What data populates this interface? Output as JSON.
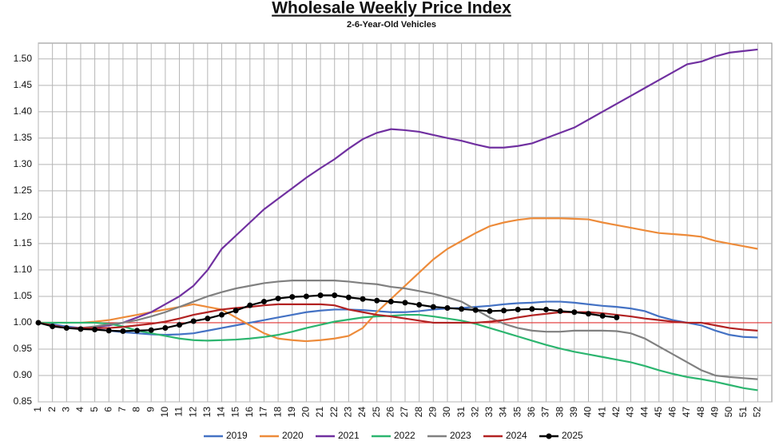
{
  "chart_data": {
    "type": "line",
    "title": "Wholesale Weekly Price Index",
    "subtitle": "2-6-Year-Old Vehicles",
    "x": [
      1,
      2,
      3,
      4,
      5,
      6,
      7,
      8,
      9,
      10,
      11,
      12,
      13,
      14,
      15,
      16,
      17,
      18,
      19,
      20,
      21,
      22,
      23,
      24,
      25,
      26,
      27,
      28,
      29,
      30,
      31,
      32,
      33,
      34,
      35,
      36,
      37,
      38,
      39,
      40,
      41,
      42,
      43,
      44,
      45,
      46,
      47,
      48,
      49,
      50,
      51,
      52
    ],
    "xlim": [
      1,
      53
    ],
    "xticks": [
      1,
      2,
      3,
      4,
      5,
      6,
      7,
      8,
      9,
      10,
      11,
      12,
      13,
      14,
      15,
      16,
      17,
      18,
      19,
      20,
      21,
      22,
      23,
      24,
      25,
      26,
      27,
      28,
      29,
      30,
      31,
      32,
      33,
      34,
      35,
      36,
      37,
      38,
      39,
      40,
      41,
      42,
      43,
      44,
      45,
      46,
      47,
      48,
      49,
      50,
      51,
      52
    ],
    "ylim": [
      0.85,
      1.53
    ],
    "yticks": [
      {
        "value": 0.85,
        "label": "0.85"
      },
      {
        "value": 0.9,
        "label": "0.90"
      },
      {
        "value": 0.95,
        "label": "0.95"
      },
      {
        "value": 1.0,
        "label": "1.00"
      },
      {
        "value": 1.05,
        "label": "1.05"
      },
      {
        "value": 1.1,
        "label": "1.10"
      },
      {
        "value": 1.15,
        "label": "1.15"
      },
      {
        "value": 1.2,
        "label": "1.20"
      },
      {
        "value": 1.25,
        "label": "1.25"
      },
      {
        "value": 1.3,
        "label": "1.30"
      },
      {
        "value": 1.35,
        "label": "1.35"
      },
      {
        "value": 1.4,
        "label": "1.40"
      },
      {
        "value": 1.45,
        "label": "1.45"
      },
      {
        "value": 1.5,
        "label": "1.50"
      }
    ],
    "grid": true,
    "reference_line": {
      "value": 1.0,
      "color": "#e03030"
    },
    "legend": "bottom",
    "series": [
      {
        "name": "2019",
        "color": "#4472c4",
        "values": [
          1.0,
          0.997,
          0.993,
          0.99,
          0.988,
          0.985,
          0.982,
          0.98,
          0.978,
          0.977,
          0.978,
          0.98,
          0.985,
          0.99,
          0.995,
          1.0,
          1.005,
          1.01,
          1.015,
          1.02,
          1.023,
          1.025,
          1.025,
          1.024,
          1.022,
          1.02,
          1.02,
          1.022,
          1.025,
          1.027,
          1.028,
          1.03,
          1.032,
          1.035,
          1.037,
          1.038,
          1.04,
          1.04,
          1.038,
          1.035,
          1.032,
          1.03,
          1.027,
          1.022,
          1.012,
          1.005,
          1.0,
          0.995,
          0.985,
          0.977,
          0.973,
          0.972
        ]
      },
      {
        "name": "2020",
        "color": "#ed8b3a",
        "values": [
          1.0,
          1.0,
          1.0,
          1.0,
          1.002,
          1.005,
          1.01,
          1.015,
          1.02,
          1.025,
          1.03,
          1.035,
          1.03,
          1.025,
          1.01,
          0.995,
          0.98,
          0.97,
          0.967,
          0.965,
          0.967,
          0.97,
          0.975,
          0.99,
          1.02,
          1.045,
          1.07,
          1.095,
          1.12,
          1.14,
          1.155,
          1.17,
          1.183,
          1.19,
          1.195,
          1.198,
          1.198,
          1.198,
          1.197,
          1.196,
          1.19,
          1.185,
          1.18,
          1.175,
          1.17,
          1.168,
          1.166,
          1.163,
          1.155,
          1.15,
          1.145,
          1.14
        ]
      },
      {
        "name": "2021",
        "color": "#7030a0",
        "values": [
          1.0,
          0.995,
          0.99,
          0.99,
          0.992,
          0.995,
          1.0,
          1.01,
          1.02,
          1.035,
          1.05,
          1.07,
          1.1,
          1.14,
          1.165,
          1.19,
          1.215,
          1.235,
          1.255,
          1.275,
          1.293,
          1.31,
          1.33,
          1.348,
          1.36,
          1.367,
          1.365,
          1.362,
          1.356,
          1.35,
          1.345,
          1.338,
          1.332,
          1.332,
          1.335,
          1.34,
          1.35,
          1.36,
          1.37,
          1.385,
          1.4,
          1.415,
          1.43,
          1.445,
          1.46,
          1.475,
          1.49,
          1.495,
          1.505,
          1.512,
          1.515,
          1.518
        ]
      },
      {
        "name": "2022",
        "color": "#2cb56f",
        "values": [
          1.0,
          1.0,
          1.0,
          1.0,
          1.0,
          0.998,
          0.993,
          0.985,
          0.98,
          0.975,
          0.97,
          0.967,
          0.966,
          0.967,
          0.968,
          0.97,
          0.973,
          0.977,
          0.983,
          0.99,
          0.996,
          1.002,
          1.006,
          1.01,
          1.012,
          1.013,
          1.015,
          1.015,
          1.012,
          1.008,
          1.004,
          0.998,
          0.99,
          0.982,
          0.974,
          0.966,
          0.958,
          0.951,
          0.945,
          0.94,
          0.935,
          0.93,
          0.925,
          0.918,
          0.91,
          0.903,
          0.897,
          0.893,
          0.888,
          0.882,
          0.876,
          0.872
        ]
      },
      {
        "name": "2023",
        "color": "#808080",
        "values": [
          1.0,
          0.995,
          0.99,
          0.99,
          0.993,
          0.997,
          1.0,
          1.005,
          1.012,
          1.02,
          1.03,
          1.04,
          1.05,
          1.058,
          1.065,
          1.07,
          1.075,
          1.078,
          1.08,
          1.08,
          1.08,
          1.08,
          1.078,
          1.075,
          1.073,
          1.068,
          1.065,
          1.06,
          1.055,
          1.048,
          1.04,
          1.025,
          1.01,
          0.998,
          0.99,
          0.985,
          0.983,
          0.983,
          0.985,
          0.985,
          0.985,
          0.984,
          0.98,
          0.97,
          0.955,
          0.94,
          0.925,
          0.91,
          0.9,
          0.897,
          0.895,
          0.893
        ]
      },
      {
        "name": "2024",
        "color": "#b22222",
        "values": [
          1.0,
          0.995,
          0.99,
          0.99,
          0.99,
          0.99,
          0.992,
          0.995,
          0.998,
          1.002,
          1.008,
          1.015,
          1.02,
          1.025,
          1.028,
          1.03,
          1.033,
          1.035,
          1.035,
          1.035,
          1.035,
          1.033,
          1.025,
          1.02,
          1.015,
          1.012,
          1.008,
          1.004,
          1.0,
          1.0,
          1.0,
          1.0,
          1.002,
          1.005,
          1.01,
          1.014,
          1.017,
          1.02,
          1.02,
          1.02,
          1.018,
          1.015,
          1.012,
          1.008,
          1.005,
          1.002,
          1.0,
          1.0,
          0.995,
          0.99,
          0.987,
          0.985
        ]
      },
      {
        "name": "2025",
        "color": "#000000",
        "marker": "circle",
        "values": [
          1.0,
          0.993,
          0.99,
          0.988,
          0.987,
          0.985,
          0.984,
          0.985,
          0.986,
          0.99,
          0.996,
          1.003,
          1.008,
          1.015,
          1.023,
          1.033,
          1.04,
          1.046,
          1.049,
          1.05,
          1.052,
          1.052,
          1.048,
          1.045,
          1.042,
          1.04,
          1.038,
          1.034,
          1.03,
          1.028,
          1.026,
          1.024,
          1.022,
          1.023,
          1.025,
          1.026,
          1.025,
          1.022,
          1.02,
          1.017,
          1.013,
          1.01,
          null,
          null,
          null,
          null,
          null,
          null,
          null,
          null,
          null,
          null
        ]
      }
    ]
  }
}
